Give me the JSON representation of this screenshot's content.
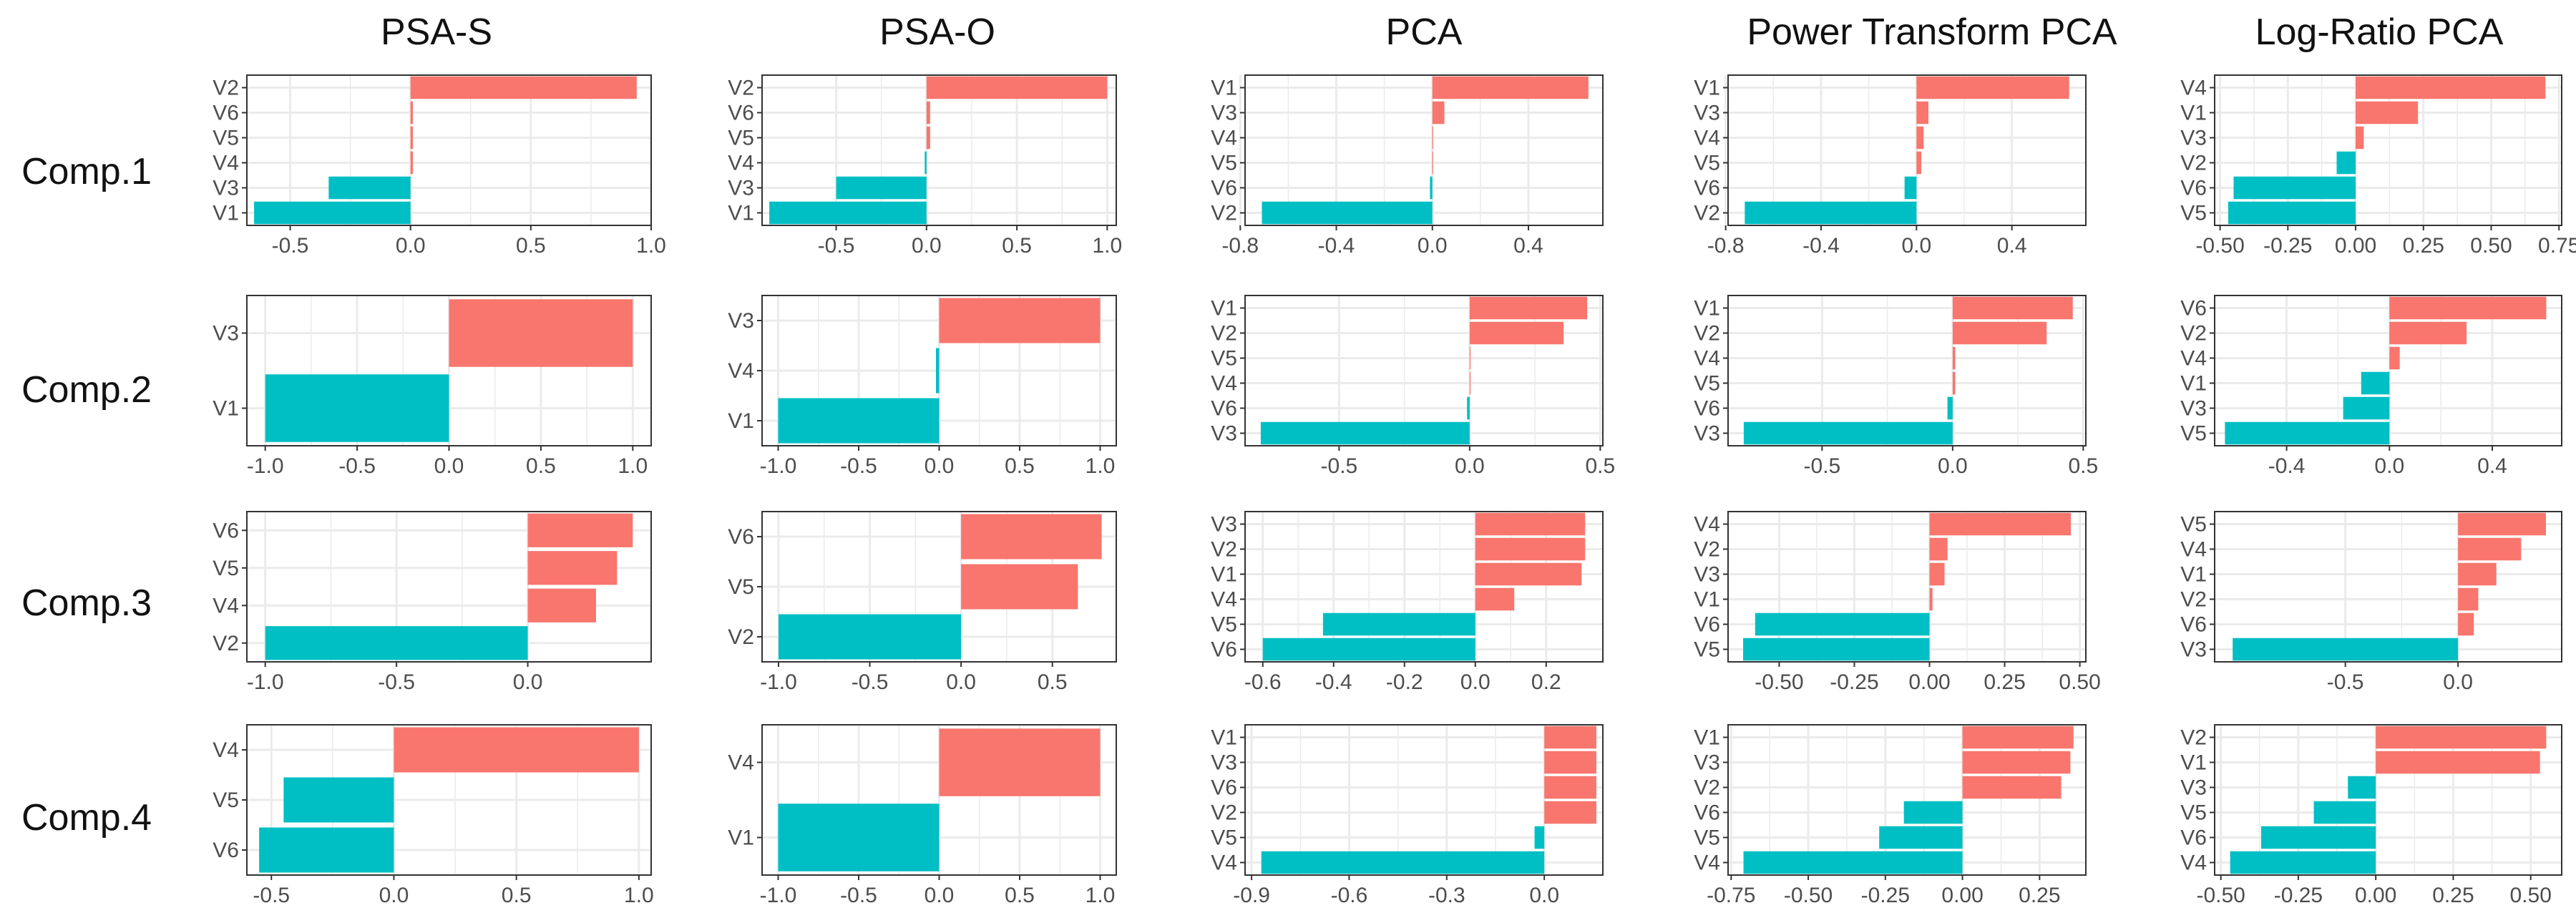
{
  "column_titles": [
    "PSA-S",
    "PSA-O",
    "PCA",
    "Power Transform PCA",
    "Log-Ratio PCA"
  ],
  "row_titles": [
    "Comp.1",
    "Comp.2",
    "Comp.3",
    "Comp.4"
  ],
  "colors": {
    "positive": "#F8766D",
    "negative": "#00BFC4",
    "grid": "#EBEBEB",
    "axis_text": "#4D4D4D",
    "panel_border": "#333333"
  },
  "chart_data": [
    {
      "type": "bar",
      "orientation": "horizontal",
      "method": "PSA-S",
      "component": "Comp.1",
      "categories": [
        "V2",
        "V6",
        "V5",
        "V4",
        "V3",
        "V1"
      ],
      "values": [
        0.94,
        0.01,
        0.01,
        0.01,
        -0.34,
        -0.65
      ],
      "xlim": [
        -0.68,
        1.0
      ],
      "ticks": [
        -0.5,
        0.0,
        0.5,
        1.0
      ],
      "tick_labels": [
        "-0.5",
        "0.0",
        "0.5",
        "1.0"
      ]
    },
    {
      "type": "bar",
      "orientation": "horizontal",
      "method": "PSA-O",
      "component": "Comp.1",
      "categories": [
        "V2",
        "V6",
        "V5",
        "V4",
        "V3",
        "V1"
      ],
      "values": [
        1.0,
        0.02,
        0.02,
        -0.01,
        -0.5,
        -0.87
      ],
      "xlim": [
        -0.91,
        1.05
      ],
      "ticks": [
        -0.5,
        0.0,
        0.5,
        1.0
      ],
      "tick_labels": [
        "-0.5",
        "0.0",
        "0.5",
        "1.0"
      ]
    },
    {
      "type": "bar",
      "orientation": "horizontal",
      "method": "PCA",
      "component": "Comp.1",
      "categories": [
        "V1",
        "V3",
        "V4",
        "V5",
        "V6",
        "V2"
      ],
      "values": [
        0.65,
        0.05,
        0.003,
        0.002,
        -0.01,
        -0.71
      ],
      "xlim": [
        -0.78,
        0.71
      ],
      "ticks": [
        -0.8,
        -0.4,
        0.0,
        0.4
      ],
      "tick_labels": [
        "-0.8",
        "-0.4",
        "0.0",
        "0.4"
      ]
    },
    {
      "type": "bar",
      "orientation": "horizontal",
      "method": "Power Transform PCA",
      "component": "Comp.1",
      "categories": [
        "V1",
        "V3",
        "V4",
        "V5",
        "V6",
        "V2"
      ],
      "values": [
        0.64,
        0.05,
        0.03,
        0.02,
        -0.05,
        -0.72
      ],
      "xlim": [
        -0.79,
        0.71
      ],
      "ticks": [
        -0.8,
        -0.4,
        0.0,
        0.4
      ],
      "tick_labels": [
        "-0.8",
        "-0.4",
        "0.0",
        "0.4"
      ]
    },
    {
      "type": "bar",
      "orientation": "horizontal",
      "method": "Log-Ratio PCA",
      "component": "Comp.1",
      "categories": [
        "V4",
        "V1",
        "V3",
        "V2",
        "V6",
        "V5"
      ],
      "values": [
        0.7,
        0.23,
        0.03,
        -0.07,
        -0.45,
        -0.47
      ],
      "xlim": [
        -0.52,
        0.76
      ],
      "ticks": [
        -0.5,
        -0.25,
        0.0,
        0.25,
        0.5,
        0.75
      ],
      "tick_labels": [
        "-0.50",
        "-0.25",
        "0.00",
        "0.25",
        "0.50",
        "0.75"
      ]
    },
    {
      "type": "bar",
      "orientation": "horizontal",
      "method": "PSA-S",
      "component": "Comp.2",
      "categories": [
        "V3",
        "V1"
      ],
      "values": [
        1.0,
        -1.0
      ],
      "xlim": [
        -1.1,
        1.1
      ],
      "ticks": [
        -1.0,
        -0.5,
        0.0,
        0.5,
        1.0
      ],
      "tick_labels": [
        "-1.0",
        "-0.5",
        "0.0",
        "0.5",
        "1.0"
      ]
    },
    {
      "type": "bar",
      "orientation": "horizontal",
      "method": "PSA-O",
      "component": "Comp.2",
      "categories": [
        "V3",
        "V4",
        "V1"
      ],
      "values": [
        1.0,
        -0.02,
        -1.0
      ],
      "xlim": [
        -1.1,
        1.1
      ],
      "ticks": [
        -1.0,
        -0.5,
        0.0,
        0.5,
        1.0
      ],
      "tick_labels": [
        "-1.0",
        "-0.5",
        "0.0",
        "0.5",
        "1.0"
      ]
    },
    {
      "type": "bar",
      "orientation": "horizontal",
      "method": "PCA",
      "component": "Comp.2",
      "categories": [
        "V1",
        "V2",
        "V5",
        "V4",
        "V6",
        "V3"
      ],
      "values": [
        0.45,
        0.36,
        0.003,
        0.002,
        -0.01,
        -0.8
      ],
      "xlim": [
        -0.86,
        0.51
      ],
      "ticks": [
        -0.5,
        0.0,
        0.5
      ],
      "tick_labels": [
        "-0.5",
        "0.0",
        "0.5"
      ]
    },
    {
      "type": "bar",
      "orientation": "horizontal",
      "method": "Power Transform PCA",
      "component": "Comp.2",
      "categories": [
        "V1",
        "V2",
        "V4",
        "V5",
        "V6",
        "V3"
      ],
      "values": [
        0.46,
        0.36,
        0.01,
        0.01,
        -0.02,
        -0.8
      ],
      "xlim": [
        -0.86,
        0.51
      ],
      "ticks": [
        -0.5,
        0.0,
        0.5
      ],
      "tick_labels": [
        "-0.5",
        "0.0",
        "0.5"
      ]
    },
    {
      "type": "bar",
      "orientation": "horizontal",
      "method": "Log-Ratio PCA",
      "component": "Comp.2",
      "categories": [
        "V6",
        "V2",
        "V4",
        "V1",
        "V3",
        "V5"
      ],
      "values": [
        0.61,
        0.3,
        0.04,
        -0.11,
        -0.18,
        -0.64
      ],
      "xlim": [
        -0.68,
        0.67
      ],
      "ticks": [
        -0.4,
        0.0,
        0.4
      ],
      "tick_labels": [
        "-0.4",
        "0.0",
        "0.4"
      ]
    },
    {
      "type": "bar",
      "orientation": "horizontal",
      "method": "PSA-S",
      "component": "Comp.3",
      "categories": [
        "V6",
        "V5",
        "V4",
        "V2"
      ],
      "values": [
        0.4,
        0.34,
        0.26,
        -1.0
      ],
      "xlim": [
        -1.07,
        0.47
      ],
      "ticks": [
        -1.0,
        -0.5,
        0.0
      ],
      "tick_labels": [
        "-1.0",
        "-0.5",
        "0.0"
      ]
    },
    {
      "type": "bar",
      "orientation": "horizontal",
      "method": "PSA-O",
      "component": "Comp.3",
      "categories": [
        "V6",
        "V5",
        "V2"
      ],
      "values": [
        0.77,
        0.64,
        -1.0
      ],
      "xlim": [
        -1.09,
        0.85
      ],
      "ticks": [
        -1.0,
        -0.5,
        0.0,
        0.5
      ],
      "tick_labels": [
        "-1.0",
        "-0.5",
        "0.0",
        "0.5"
      ]
    },
    {
      "type": "bar",
      "orientation": "horizontal",
      "method": "PCA",
      "component": "Comp.3",
      "categories": [
        "V3",
        "V2",
        "V1",
        "V4",
        "V5",
        "V6"
      ],
      "values": [
        0.31,
        0.31,
        0.3,
        0.11,
        -0.43,
        -0.6
      ],
      "xlim": [
        -0.65,
        0.36
      ],
      "ticks": [
        -0.6,
        -0.4,
        -0.2,
        0.0,
        0.2
      ],
      "tick_labels": [
        "-0.6",
        "-0.4",
        "-0.2",
        "0.0",
        "0.2"
      ]
    },
    {
      "type": "bar",
      "orientation": "horizontal",
      "method": "Power Transform PCA",
      "component": "Comp.3",
      "categories": [
        "V4",
        "V2",
        "V3",
        "V1",
        "V6",
        "V5"
      ],
      "values": [
        0.47,
        0.06,
        0.05,
        0.01,
        -0.58,
        -0.62
      ],
      "xlim": [
        -0.67,
        0.52
      ],
      "ticks": [
        -0.5,
        -0.25,
        0.0,
        0.25,
        0.5
      ],
      "tick_labels": [
        "-0.50",
        "-0.25",
        "0.00",
        "0.25",
        "0.50"
      ]
    },
    {
      "type": "bar",
      "orientation": "horizontal",
      "method": "Log-Ratio PCA",
      "component": "Comp.3",
      "categories": [
        "V5",
        "V4",
        "V1",
        "V2",
        "V6",
        "V3"
      ],
      "values": [
        0.39,
        0.28,
        0.17,
        0.09,
        0.07,
        -1.0
      ],
      "xlim": [
        -1.08,
        0.46
      ],
      "ticks": [
        -0.5,
        0.0
      ],
      "tick_labels": [
        "-0.5",
        "0.0"
      ]
    },
    {
      "type": "bar",
      "orientation": "horizontal",
      "method": "PSA-S",
      "component": "Comp.4",
      "categories": [
        "V4",
        "V5",
        "V6"
      ],
      "values": [
        1.0,
        -0.45,
        -0.55
      ],
      "xlim": [
        -0.6,
        1.05
      ],
      "ticks": [
        -0.5,
        0.0,
        0.5,
        1.0
      ],
      "tick_labels": [
        "-0.5",
        "0.0",
        "0.5",
        "1.0"
      ]
    },
    {
      "type": "bar",
      "orientation": "horizontal",
      "method": "PSA-O",
      "component": "Comp.4",
      "categories": [
        "V4",
        "V1"
      ],
      "values": [
        1.0,
        -1.0
      ],
      "xlim": [
        -1.1,
        1.1
      ],
      "ticks": [
        -1.0,
        -0.5,
        0.0,
        0.5,
        1.0
      ],
      "tick_labels": [
        "-1.0",
        "-0.5",
        "0.0",
        "0.5",
        "1.0"
      ]
    },
    {
      "type": "bar",
      "orientation": "horizontal",
      "method": "PCA",
      "component": "Comp.4",
      "categories": [
        "V1",
        "V3",
        "V6",
        "V2",
        "V5",
        "V4"
      ],
      "values": [
        0.16,
        0.16,
        0.16,
        0.16,
        -0.03,
        -0.87
      ],
      "xlim": [
        -0.92,
        0.18
      ],
      "ticks": [
        -0.9,
        -0.6,
        -0.3,
        0.0
      ],
      "tick_labels": [
        "-0.9",
        "-0.6",
        "-0.3",
        "0.0"
      ]
    },
    {
      "type": "bar",
      "orientation": "horizontal",
      "method": "Power Transform PCA",
      "component": "Comp.4",
      "categories": [
        "V1",
        "V3",
        "V2",
        "V6",
        "V5",
        "V4"
      ],
      "values": [
        0.36,
        0.35,
        0.32,
        -0.19,
        -0.27,
        -0.71
      ],
      "xlim": [
        -0.76,
        0.4
      ],
      "ticks": [
        -0.75,
        -0.5,
        -0.25,
        0.0,
        0.25
      ],
      "tick_labels": [
        "-0.75",
        "-0.50",
        "-0.25",
        "0.00",
        "0.25"
      ]
    },
    {
      "type": "bar",
      "orientation": "horizontal",
      "method": "Log-Ratio PCA",
      "component": "Comp.4",
      "categories": [
        "V2",
        "V1",
        "V3",
        "V5",
        "V6",
        "V4"
      ],
      "values": [
        0.55,
        0.53,
        -0.09,
        -0.2,
        -0.37,
        -0.47
      ],
      "xlim": [
        -0.52,
        0.6
      ],
      "ticks": [
        -0.5,
        -0.25,
        0.0,
        0.25,
        0.5
      ],
      "tick_labels": [
        "-0.50",
        "-0.25",
        "0.00",
        "0.25",
        "0.50"
      ]
    }
  ]
}
